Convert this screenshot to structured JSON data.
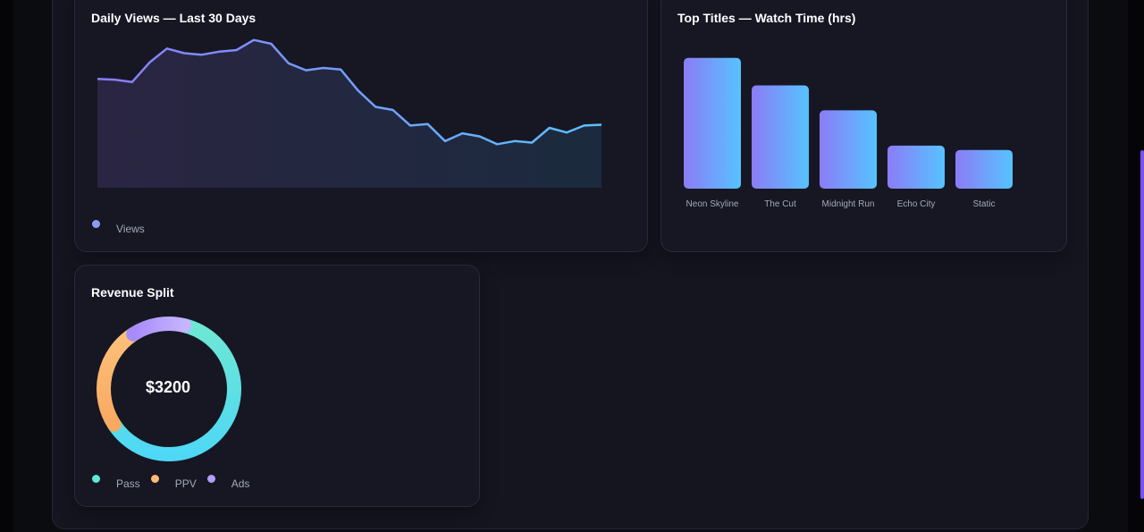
{
  "line_card": {
    "title": "Daily Views — Last 30 Days"
  },
  "bar_card": {
    "title": "Top Titles — Watch Time (hrs)"
  },
  "donut_card": {
    "title": "Revenue Split",
    "center": "$3200"
  },
  "colors": {
    "violet": "#8b7cf6",
    "sky": "#5bc0ff",
    "teal": "#5eead4",
    "amber": "#fdba74",
    "lavender": "#b39dfa"
  },
  "chart_data": [
    {
      "type": "line",
      "title": "Daily Views — Last 30 Days",
      "x": [
        1,
        2,
        3,
        4,
        5,
        6,
        7,
        8,
        9,
        10,
        11,
        12,
        13,
        14,
        15,
        16,
        17,
        18,
        19,
        20,
        21,
        22,
        23,
        24,
        25,
        26,
        27,
        28,
        29,
        30
      ],
      "ylim": [
        0,
        1000
      ],
      "series": [
        {
          "name": "Views",
          "values": [
            700,
            695,
            680,
            805,
            895,
            865,
            855,
            875,
            885,
            950,
            925,
            800,
            755,
            770,
            760,
            625,
            520,
            500,
            400,
            410,
            300,
            350,
            330,
            280,
            300,
            290,
            385,
            355,
            400,
            405
          ]
        }
      ],
      "legend": "bottom-left"
    },
    {
      "type": "bar",
      "title": "Top Titles — Watch Time (hrs)",
      "categories": [
        "Neon Skyline",
        "The Cut",
        "Midnight Run",
        "Echo City",
        "Static"
      ],
      "values": [
        152,
        120,
        91,
        50,
        45
      ],
      "ylim": [
        0,
        160
      ]
    },
    {
      "type": "pie",
      "title": "Revenue Split",
      "center_label": "$3200",
      "labels": [
        "Pass",
        "PPV",
        "Ads"
      ],
      "values": [
        0.62,
        0.25,
        0.13
      ],
      "colors": [
        "#5eead4",
        "#fdba74",
        "#b39dfa"
      ],
      "legend": "bottom-left"
    }
  ]
}
